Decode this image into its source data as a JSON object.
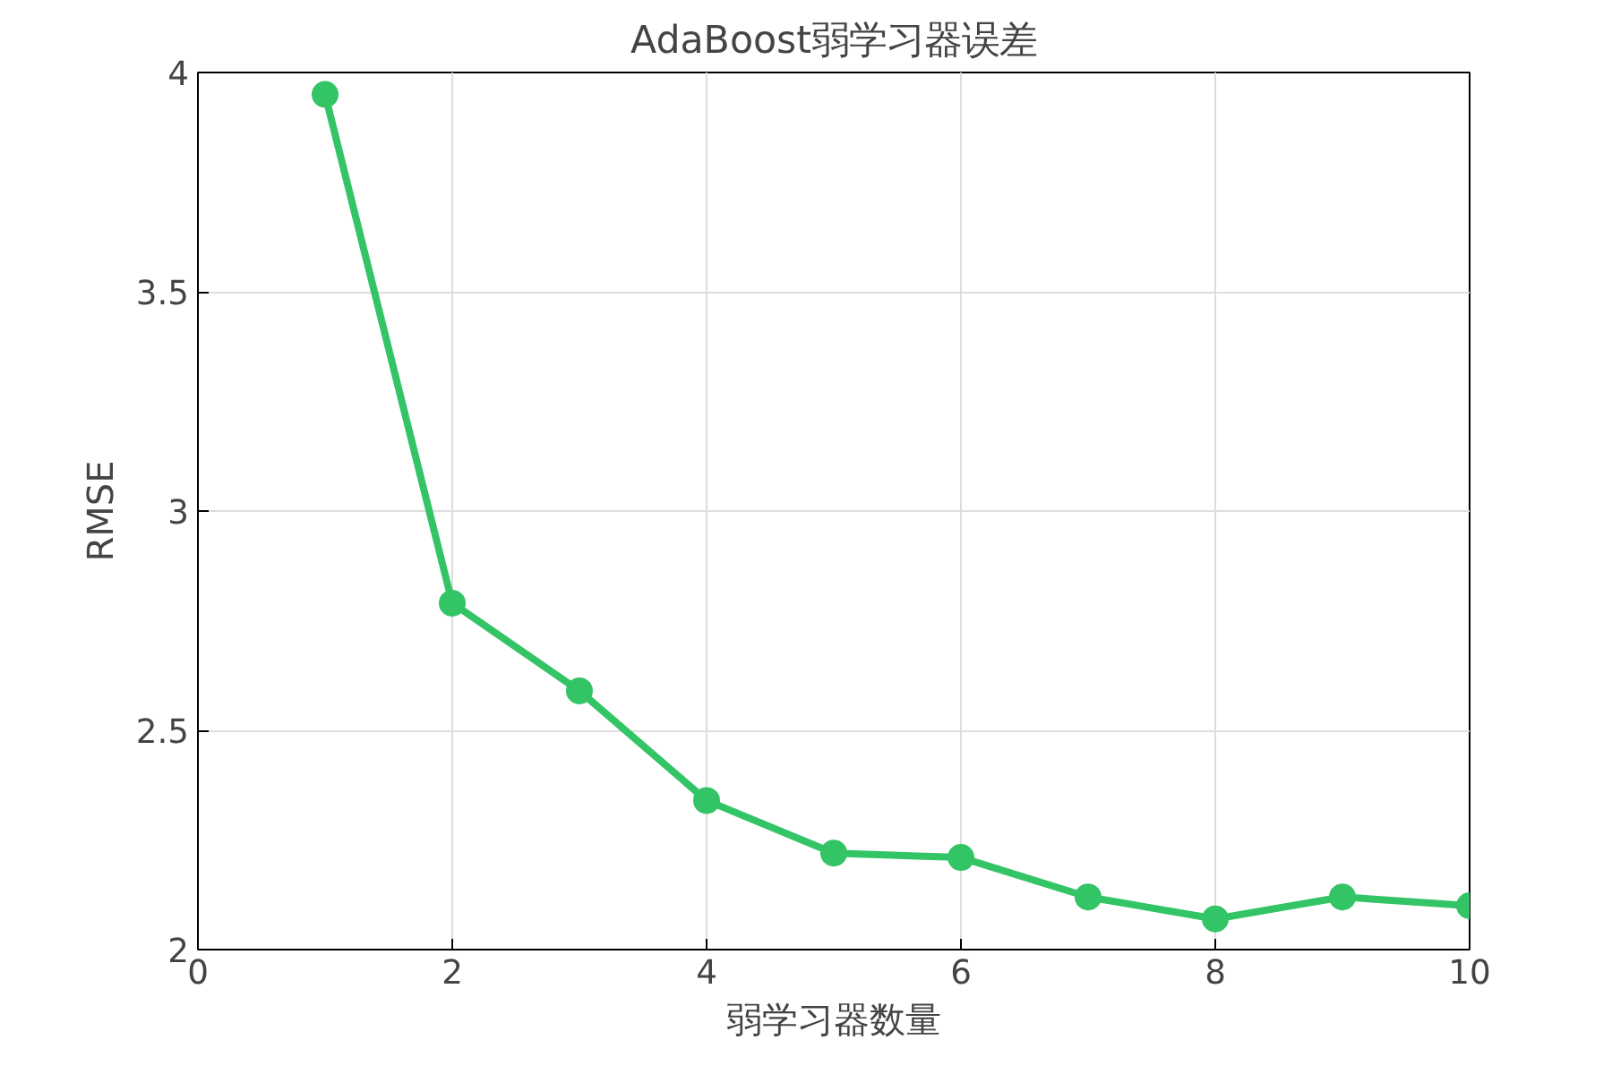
{
  "chart_data": {
    "type": "line",
    "title": "AdaBoost弱学习器误差",
    "xlabel": "弱学习器数量",
    "ylabel": "RMSE",
    "x": [
      1,
      2,
      3,
      4,
      5,
      6,
      7,
      8,
      9,
      10
    ],
    "series": [
      {
        "color": "#33c466",
        "values": [
          3.95,
          2.79,
          2.59,
          2.34,
          2.22,
          2.21,
          2.12,
          2.07,
          2.12,
          2.1
        ]
      }
    ],
    "xlim": [
      0,
      10
    ],
    "ylim": [
      2,
      4
    ],
    "xticks": [
      0,
      2,
      4,
      6,
      8,
      10
    ],
    "yticks": [
      2,
      2.5,
      3,
      3.5,
      4
    ],
    "grid": true,
    "marker": "circle",
    "line_style": "solid"
  }
}
